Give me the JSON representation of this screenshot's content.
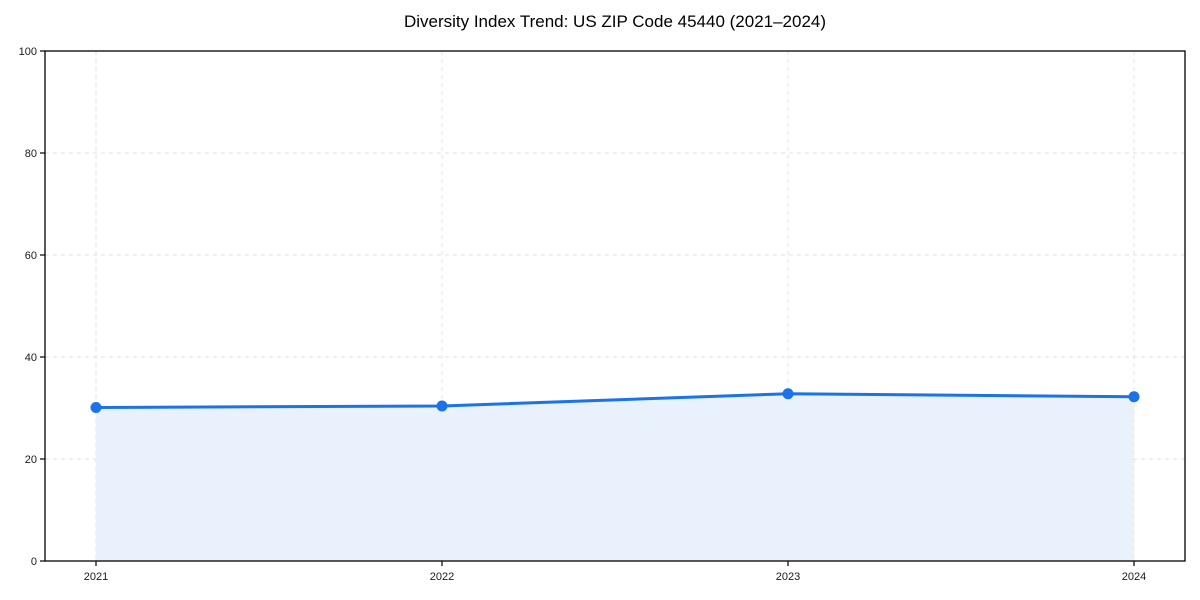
{
  "chart_data": {
    "type": "area",
    "title": "Diversity Index Trend: US ZIP Code 45440 (2021–2024)",
    "categories": [
      "2021",
      "2022",
      "2023",
      "2024"
    ],
    "series": [
      {
        "name": "Diversity Index",
        "values": [
          30.1,
          30.4,
          32.8,
          32.2
        ]
      }
    ],
    "xlabel": "",
    "ylabel": "",
    "ylim": [
      0,
      100
    ],
    "yticks": [
      0,
      20,
      40,
      60,
      80,
      100
    ],
    "grid": "dashed",
    "legend": "none",
    "colors": {
      "line": "#1a73e8",
      "marker": "#1a73e8",
      "area_fill": "#e9f1fd",
      "gridline": "#e0e0e0",
      "axis": "#000000",
      "tick_label": "#1a1a1a",
      "title": "#000000",
      "background": "#ffffff"
    }
  }
}
